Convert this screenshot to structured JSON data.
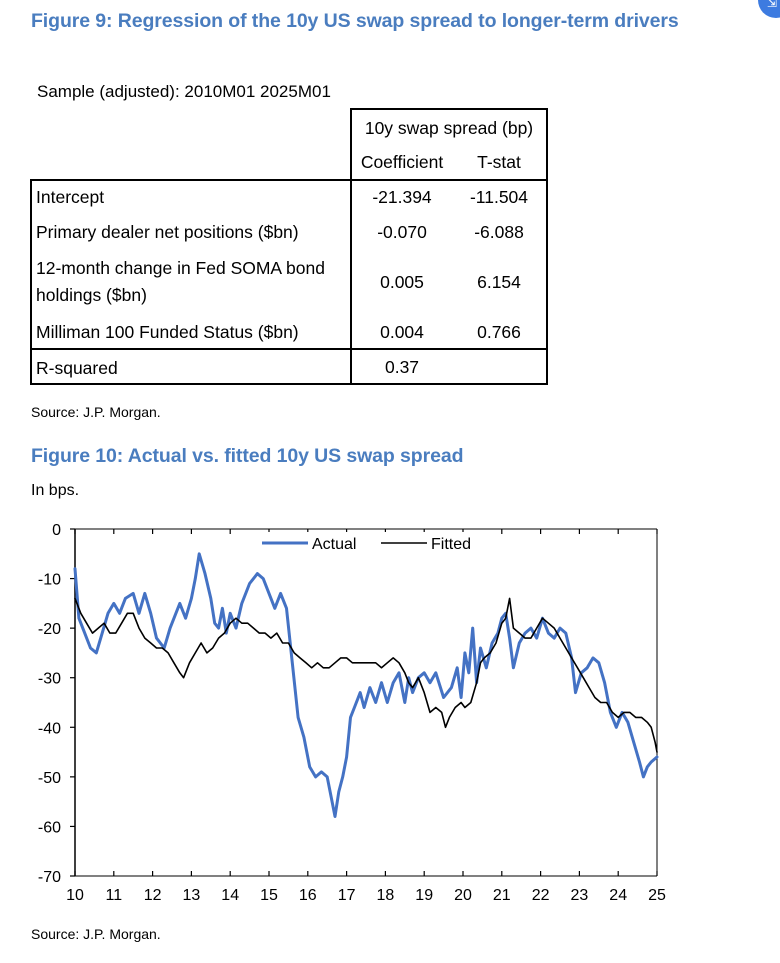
{
  "figure9": {
    "title": "Figure 9: Regression of the 10y US swap spread to longer-term drivers",
    "sample": "Sample (adjusted): 2010M01 2025M01",
    "header_group": "10y swap spread (bp)",
    "col_coefficient": "Coefficient",
    "col_tstat": "T-stat",
    "rows": [
      {
        "label": "Intercept",
        "coefficient": "-21.394",
        "tstat": "-11.504"
      },
      {
        "label": "Primary dealer net positions ($bn)",
        "coefficient": "-0.070",
        "tstat": "-6.088"
      },
      {
        "label": "12-month change in Fed SOMA bond",
        "label2": "holdings ($bn)",
        "coefficient": "0.005",
        "tstat": "6.154"
      },
      {
        "label": "Milliman 100 Funded Status ($bn)",
        "coefficient": "0.004",
        "tstat": "0.766"
      }
    ],
    "rsquared_label": "R-squared",
    "rsquared_value": "0.37",
    "source": "Source: J.P. Morgan."
  },
  "figure10": {
    "title": "Figure 10: Actual vs. fitted 10y US swap spread",
    "units": "In bps.",
    "source": "Source: J.P. Morgan."
  },
  "colors": {
    "title": "#4a7dbf",
    "actual": "#4472c4",
    "fitted": "#000000"
  },
  "icon": "expand-icon",
  "chart_data": {
    "type": "line",
    "title": "Figure 10: Actual vs. fitted 10y US swap spread",
    "xlabel": "",
    "ylabel": "In bps.",
    "xlim": [
      10,
      25
    ],
    "ylim": [
      -70,
      0
    ],
    "x_ticks": [
      10,
      11,
      12,
      13,
      14,
      15,
      16,
      17,
      18,
      19,
      20,
      21,
      22,
      23,
      24,
      25
    ],
    "y_ticks": [
      0,
      -10,
      -20,
      -30,
      -40,
      -50,
      -60,
      -70
    ],
    "legend_position": "top-center",
    "series": [
      {
        "name": "Actual",
        "color": "#4472c4",
        "points": [
          [
            10.0,
            -8
          ],
          [
            10.1,
            -18
          ],
          [
            10.25,
            -21
          ],
          [
            10.4,
            -24
          ],
          [
            10.55,
            -25
          ],
          [
            10.7,
            -21
          ],
          [
            10.85,
            -17
          ],
          [
            11.0,
            -15
          ],
          [
            11.15,
            -17
          ],
          [
            11.3,
            -14
          ],
          [
            11.5,
            -13
          ],
          [
            11.65,
            -17
          ],
          [
            11.8,
            -13
          ],
          [
            11.95,
            -17
          ],
          [
            12.1,
            -22
          ],
          [
            12.3,
            -24
          ],
          [
            12.45,
            -20
          ],
          [
            12.6,
            -17
          ],
          [
            12.7,
            -15
          ],
          [
            12.85,
            -18
          ],
          [
            13.0,
            -14
          ],
          [
            13.1,
            -10
          ],
          [
            13.2,
            -5
          ],
          [
            13.35,
            -9
          ],
          [
            13.5,
            -14
          ],
          [
            13.6,
            -19
          ],
          [
            13.7,
            -20
          ],
          [
            13.8,
            -16
          ],
          [
            13.9,
            -21
          ],
          [
            14.0,
            -17
          ],
          [
            14.15,
            -20
          ],
          [
            14.3,
            -15
          ],
          [
            14.5,
            -11
          ],
          [
            14.7,
            -9
          ],
          [
            14.85,
            -10
          ],
          [
            15.0,
            -13
          ],
          [
            15.15,
            -16
          ],
          [
            15.3,
            -13
          ],
          [
            15.45,
            -16
          ],
          [
            15.6,
            -27
          ],
          [
            15.75,
            -38
          ],
          [
            15.9,
            -42
          ],
          [
            16.05,
            -48
          ],
          [
            16.2,
            -50
          ],
          [
            16.35,
            -49
          ],
          [
            16.5,
            -50
          ],
          [
            16.6,
            -54
          ],
          [
            16.7,
            -58
          ],
          [
            16.8,
            -53
          ],
          [
            16.9,
            -50
          ],
          [
            17.0,
            -46
          ],
          [
            17.1,
            -38
          ],
          [
            17.2,
            -36
          ],
          [
            17.35,
            -33
          ],
          [
            17.45,
            -36
          ],
          [
            17.6,
            -32
          ],
          [
            17.75,
            -35
          ],
          [
            17.9,
            -31
          ],
          [
            18.05,
            -35
          ],
          [
            18.2,
            -31
          ],
          [
            18.35,
            -29
          ],
          [
            18.5,
            -35
          ],
          [
            18.6,
            -30
          ],
          [
            18.7,
            -33
          ],
          [
            18.85,
            -30
          ],
          [
            19.0,
            -29
          ],
          [
            19.15,
            -31
          ],
          [
            19.3,
            -29
          ],
          [
            19.5,
            -34
          ],
          [
            19.7,
            -32
          ],
          [
            19.85,
            -28
          ],
          [
            19.95,
            -34
          ],
          [
            20.05,
            -25
          ],
          [
            20.15,
            -29
          ],
          [
            20.25,
            -20
          ],
          [
            20.35,
            -31
          ],
          [
            20.45,
            -24
          ],
          [
            20.6,
            -28
          ],
          [
            20.75,
            -23
          ],
          [
            20.9,
            -21
          ],
          [
            21.0,
            -18
          ],
          [
            21.1,
            -17
          ],
          [
            21.2,
            -22
          ],
          [
            21.3,
            -28
          ],
          [
            21.45,
            -23
          ],
          [
            21.6,
            -21
          ],
          [
            21.75,
            -20
          ],
          [
            21.9,
            -22
          ],
          [
            22.05,
            -18
          ],
          [
            22.2,
            -21
          ],
          [
            22.35,
            -22
          ],
          [
            22.5,
            -20
          ],
          [
            22.65,
            -21
          ],
          [
            22.8,
            -26
          ],
          [
            22.9,
            -33
          ],
          [
            23.05,
            -29
          ],
          [
            23.2,
            -28
          ],
          [
            23.35,
            -26
          ],
          [
            23.5,
            -27
          ],
          [
            23.65,
            -31
          ],
          [
            23.8,
            -37
          ],
          [
            23.95,
            -40
          ],
          [
            24.1,
            -37
          ],
          [
            24.25,
            -39
          ],
          [
            24.4,
            -43
          ],
          [
            24.55,
            -47
          ],
          [
            24.65,
            -50
          ],
          [
            24.75,
            -48
          ],
          [
            24.85,
            -47
          ],
          [
            25.0,
            -46
          ]
        ]
      },
      {
        "name": "Fitted",
        "color": "#000000",
        "points": [
          [
            10.0,
            -14
          ],
          [
            10.15,
            -17
          ],
          [
            10.3,
            -19
          ],
          [
            10.45,
            -21
          ],
          [
            10.6,
            -20
          ],
          [
            10.75,
            -19
          ],
          [
            10.9,
            -21
          ],
          [
            11.05,
            -21
          ],
          [
            11.2,
            -19
          ],
          [
            11.35,
            -17
          ],
          [
            11.5,
            -17
          ],
          [
            11.65,
            -20
          ],
          [
            11.8,
            -22
          ],
          [
            11.95,
            -23
          ],
          [
            12.1,
            -24
          ],
          [
            12.25,
            -24
          ],
          [
            12.4,
            -25
          ],
          [
            12.55,
            -27
          ],
          [
            12.7,
            -29
          ],
          [
            12.8,
            -30
          ],
          [
            12.95,
            -27
          ],
          [
            13.1,
            -25
          ],
          [
            13.25,
            -23
          ],
          [
            13.4,
            -25
          ],
          [
            13.55,
            -24
          ],
          [
            13.7,
            -22
          ],
          [
            13.85,
            -21
          ],
          [
            14.0,
            -19
          ],
          [
            14.15,
            -18
          ],
          [
            14.3,
            -19
          ],
          [
            14.45,
            -19
          ],
          [
            14.6,
            -20
          ],
          [
            14.75,
            -21
          ],
          [
            14.9,
            -21
          ],
          [
            15.05,
            -22
          ],
          [
            15.2,
            -21
          ],
          [
            15.35,
            -23
          ],
          [
            15.5,
            -23
          ],
          [
            15.65,
            -25
          ],
          [
            15.8,
            -26
          ],
          [
            15.95,
            -27
          ],
          [
            16.1,
            -28
          ],
          [
            16.25,
            -27
          ],
          [
            16.4,
            -28
          ],
          [
            16.55,
            -28
          ],
          [
            16.7,
            -27
          ],
          [
            16.85,
            -26
          ],
          [
            17.0,
            -26
          ],
          [
            17.15,
            -27
          ],
          [
            17.3,
            -27
          ],
          [
            17.45,
            -27
          ],
          [
            17.6,
            -27
          ],
          [
            17.75,
            -27
          ],
          [
            17.9,
            -28
          ],
          [
            18.05,
            -27
          ],
          [
            18.2,
            -26
          ],
          [
            18.35,
            -27
          ],
          [
            18.5,
            -29
          ],
          [
            18.6,
            -31
          ],
          [
            18.7,
            -32
          ],
          [
            18.85,
            -30
          ],
          [
            19.0,
            -33
          ],
          [
            19.15,
            -37
          ],
          [
            19.3,
            -36
          ],
          [
            19.45,
            -37
          ],
          [
            19.55,
            -40
          ],
          [
            19.65,
            -38
          ],
          [
            19.8,
            -36
          ],
          [
            19.95,
            -35
          ],
          [
            20.05,
            -36
          ],
          [
            20.2,
            -35
          ],
          [
            20.35,
            -31
          ],
          [
            20.45,
            -27
          ],
          [
            20.55,
            -26
          ],
          [
            20.7,
            -25
          ],
          [
            20.85,
            -23
          ],
          [
            21.0,
            -19
          ],
          [
            21.1,
            -18
          ],
          [
            21.2,
            -14
          ],
          [
            21.3,
            -20
          ],
          [
            21.45,
            -21
          ],
          [
            21.6,
            -22
          ],
          [
            21.75,
            -22
          ],
          [
            21.9,
            -20
          ],
          [
            22.05,
            -18
          ],
          [
            22.2,
            -19
          ],
          [
            22.35,
            -20
          ],
          [
            22.5,
            -22
          ],
          [
            22.65,
            -24
          ],
          [
            22.8,
            -26
          ],
          [
            22.95,
            -28
          ],
          [
            23.1,
            -30
          ],
          [
            23.25,
            -32
          ],
          [
            23.4,
            -34
          ],
          [
            23.55,
            -35
          ],
          [
            23.7,
            -35
          ],
          [
            23.85,
            -37
          ],
          [
            24.0,
            -38
          ],
          [
            24.15,
            -37
          ],
          [
            24.3,
            -37
          ],
          [
            24.45,
            -38
          ],
          [
            24.6,
            -38
          ],
          [
            24.75,
            -39
          ],
          [
            24.85,
            -40
          ],
          [
            24.95,
            -43
          ],
          [
            25.0,
            -45
          ]
        ]
      }
    ]
  }
}
